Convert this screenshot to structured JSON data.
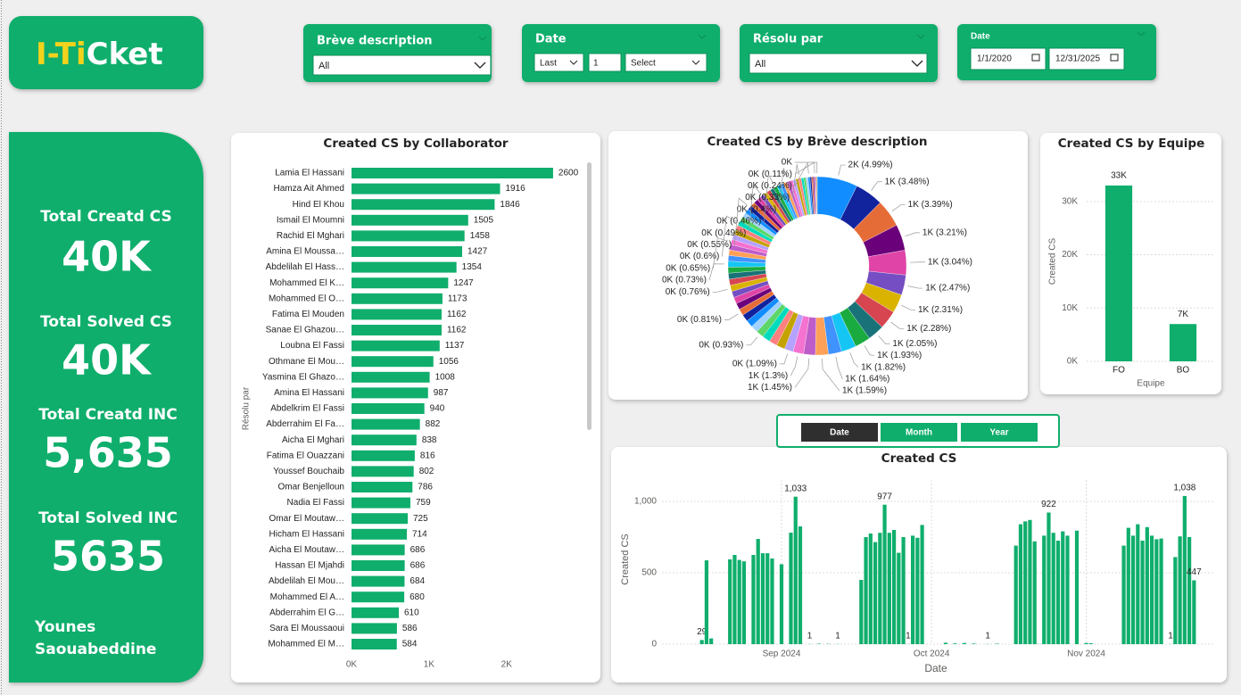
{
  "header": {
    "logo": [
      "I-Ti",
      "Cket"
    ]
  },
  "filters": [
    {
      "title": "Brève description",
      "value": "All"
    },
    {
      "title": "Date",
      "mode": "Last",
      "count": "1",
      "unit": "Select"
    },
    {
      "title": "Résolu par",
      "value": "All"
    },
    {
      "title": "Date",
      "start": "1/1/2020",
      "end": "12/31/2025"
    }
  ],
  "kpis": [
    {
      "label": "Total Creatd CS",
      "value": "40K"
    },
    {
      "label": "Total Solved CS",
      "value": "40K"
    },
    {
      "label": "Total Creatd INC",
      "value": "5,635"
    },
    {
      "label": "Total Solved INC",
      "value": "5635"
    }
  ],
  "author": [
    "Younes",
    "Saouabeddine"
  ],
  "toggle": [
    "Date",
    "Month",
    "Year"
  ],
  "chart_data": [
    {
      "type": "hbar",
      "title": "Created CS by Collaborator",
      "y_label": "Résolu par",
      "color": "#0fae6c",
      "grid": false,
      "categories": [
        "Lamia El Hassani",
        "Hamza Ait Ahmed",
        "Hind El Khou",
        "Ismail El Moumni",
        "Rachid El Mghari",
        "Amina El Moussa…",
        "Abdelilah El Hass…",
        "Mohammed El K…",
        "Mohammed El O…",
        "Fatima El Mouden",
        "Sanae El Ghazou…",
        "Loubna El Fassi",
        "Othmane El Mou…",
        "Yasmina El Ghazo…",
        "Amina El Hassani",
        "Abdelkrim El Fassi",
        "Abderrahim El Fa…",
        "Aicha El Mghari",
        "Fatima El Ouazzani",
        "Youssef Bouchaib",
        "Omar Benjelloun",
        "Nadia El Fassi",
        "Omar El Moutaw…",
        "Hicham El Hassani",
        "Aicha El Moutaw…",
        "Hassan El Mjahdi",
        "Abdelilah El Mou…",
        "Mohammed El A…",
        "Abderrahim El G…",
        "Sara El Moussaoui",
        "Mohammed El M…"
      ],
      "values": [
        2600,
        1916,
        1846,
        1505,
        1458,
        1427,
        1354,
        1247,
        1173,
        1162,
        1162,
        1137,
        1056,
        1008,
        987,
        940,
        882,
        838,
        816,
        802,
        786,
        759,
        725,
        714,
        686,
        686,
        684,
        680,
        610,
        586,
        584
      ],
      "xlim": [
        0,
        2900
      ],
      "xticks": [
        {
          "value": 0,
          "label": "0K"
        },
        {
          "value": 1000,
          "label": "1K"
        },
        {
          "value": 2000,
          "label": "2K"
        }
      ]
    },
    {
      "type": "donut",
      "title": "Created CS by Brève description",
      "colors": [
        "#118dff",
        "#12239e",
        "#e66c37",
        "#6b007b",
        "#e044a7",
        "#744ec2",
        "#d9b300",
        "#d64550",
        "#197278",
        "#1aab40",
        "#15c6f4",
        "#4092ff",
        "#ffa058",
        "#be5dc9",
        "#f472d0",
        "#b5a1ff",
        "#c4a200",
        "#ff8080",
        "#00dbbc",
        "#5bd667",
        "#a0d1ff"
      ],
      "values": [
        4.99,
        3.48,
        3.39,
        3.21,
        3.04,
        2.47,
        2.31,
        2.28,
        2.05,
        1.93,
        1.82,
        1.64,
        1.59,
        1.45,
        1.3,
        1.09,
        1.05,
        1.0,
        0.98,
        0.93,
        0.9,
        0.88,
        0.86,
        0.81,
        0.8,
        0.79,
        0.78,
        0.76,
        0.75,
        0.74,
        0.74,
        0.73,
        0.7,
        0.68,
        0.66,
        0.65,
        0.63,
        0.62,
        0.61,
        0.6,
        0.58,
        0.57,
        0.56,
        0.55,
        0.53,
        0.52,
        0.5,
        0.49,
        0.48,
        0.47,
        0.47,
        0.46,
        0.44,
        0.43,
        0.42,
        0.4,
        0.38,
        0.36,
        0.35,
        0.33,
        0.3,
        0.28,
        0.26,
        0.24,
        0.2,
        0.18,
        0.15,
        0.11,
        0.1,
        0.1,
        0.05
      ],
      "value_labels": [
        "2K (4.99%)",
        "1K (3.48%)",
        "1K (3.39%)",
        "1K (3.21%)",
        "1K (3.04%)",
        "1K (2.47%)",
        "1K (2.31%)",
        "1K (2.28%)",
        "1K (2.05%)",
        "1K (1.93%)",
        "1K (1.82%)",
        "1K (1.64%)",
        "1K (1.59%)",
        "1K (1.45%)",
        "1K (1.3%)",
        "0K (1.09%)",
        null,
        null,
        null,
        "0K (0.93%)",
        null,
        null,
        null,
        "0K (0.81%)",
        null,
        null,
        null,
        "0K (0.76%)",
        null,
        null,
        null,
        "0K (0.73%)",
        null,
        null,
        null,
        "0K (0.65%)",
        null,
        null,
        null,
        "0K (0.6%)",
        null,
        null,
        null,
        "0K (0.55%)",
        null,
        null,
        null,
        "0K (0.49%)",
        null,
        null,
        null,
        "0K (0.46%)",
        null,
        null,
        null,
        "0K (0.4%)",
        null,
        null,
        null,
        "0K (0.33%)",
        null,
        null,
        null,
        "0K (0.24%)",
        null,
        null,
        null,
        "0K (0.11%)",
        null,
        null,
        "0K"
      ]
    },
    {
      "type": "bar",
      "title": "Created CS by Equipe",
      "x_label": "Equipe",
      "y_label": "Created CS",
      "color": "#0fae6c",
      "grid": true,
      "categories": [
        "FO",
        "BO"
      ],
      "values": [
        33000,
        7000
      ],
      "value_labels": [
        "33K",
        "7K"
      ],
      "ylim": [
        0,
        36000
      ],
      "yticks": [
        {
          "value": 0,
          "label": "0K"
        },
        {
          "value": 10000,
          "label": "10K"
        },
        {
          "value": 20000,
          "label": "20K"
        },
        {
          "value": 30000,
          "label": "30K"
        }
      ]
    },
    {
      "type": "column",
      "title": "Created CS",
      "x_label": "Date",
      "y_label": "Created CS",
      "color": "#0fae6c",
      "grid": true,
      "values": [
        0,
        0,
        0,
        0,
        0,
        0,
        0,
        0,
        29,
        587,
        40,
        0,
        0,
        0,
        594,
        625,
        590,
        580,
        0,
        625,
        737,
        637,
        637,
        600,
        0,
        560,
        0,
        781,
        1033,
        825,
        0,
        1,
        0,
        3,
        0,
        2,
        0,
        1,
        0,
        0,
        0,
        0,
        450,
        750,
        775,
        715,
        780,
        977,
        780,
        800,
        640,
        750,
        1,
        760,
        745,
        835,
        0,
        0,
        0,
        0,
        10,
        0,
        5,
        0,
        8,
        0,
        4,
        0,
        0,
        1,
        0,
        3,
        0,
        0,
        0,
        690,
        840,
        860,
        870,
        720,
        1,
        760,
        922,
        780,
        725,
        790,
        760,
        0,
        795,
        0,
        8,
        6,
        0,
        0,
        0,
        0,
        0,
        0,
        690,
        815,
        760,
        840,
        725,
        820,
        760,
        735,
        740,
        0,
        1,
        610,
        755,
        1038,
        750,
        447,
        0,
        0,
        0,
        0
      ],
      "value_labels": [
        null,
        null,
        null,
        null,
        null,
        null,
        null,
        null,
        "29",
        null,
        null,
        null,
        null,
        null,
        null,
        null,
        null,
        null,
        null,
        null,
        null,
        null,
        null,
        null,
        null,
        null,
        null,
        null,
        "1,033",
        null,
        null,
        "1",
        null,
        null,
        null,
        null,
        null,
        "1",
        null,
        null,
        null,
        null,
        null,
        null,
        null,
        null,
        null,
        "977",
        null,
        null,
        null,
        null,
        "1",
        null,
        null,
        null,
        null,
        null,
        null,
        null,
        null,
        null,
        null,
        null,
        null,
        null,
        null,
        null,
        null,
        "1",
        null,
        null,
        null,
        null,
        null,
        null,
        null,
        null,
        null,
        null,
        null,
        null,
        "922",
        null,
        null,
        null,
        null,
        null,
        null,
        null,
        null,
        null,
        null,
        null,
        null,
        null,
        null,
        null,
        null,
        null,
        null,
        null,
        null,
        null,
        null,
        null,
        null,
        null,
        "1",
        null,
        null,
        "1,038",
        null,
        "447",
        null,
        null,
        null,
        null
      ],
      "xticks": [
        {
          "value": 25,
          "label": "Sep 2024"
        },
        {
          "value": 57,
          "label": "Oct 2024"
        },
        {
          "value": 90,
          "label": "Nov 2024"
        }
      ],
      "ylim": [
        0,
        1150
      ],
      "yticks": [
        0,
        500,
        {
          "value": 1000,
          "label": "1,000"
        }
      ]
    }
  ]
}
